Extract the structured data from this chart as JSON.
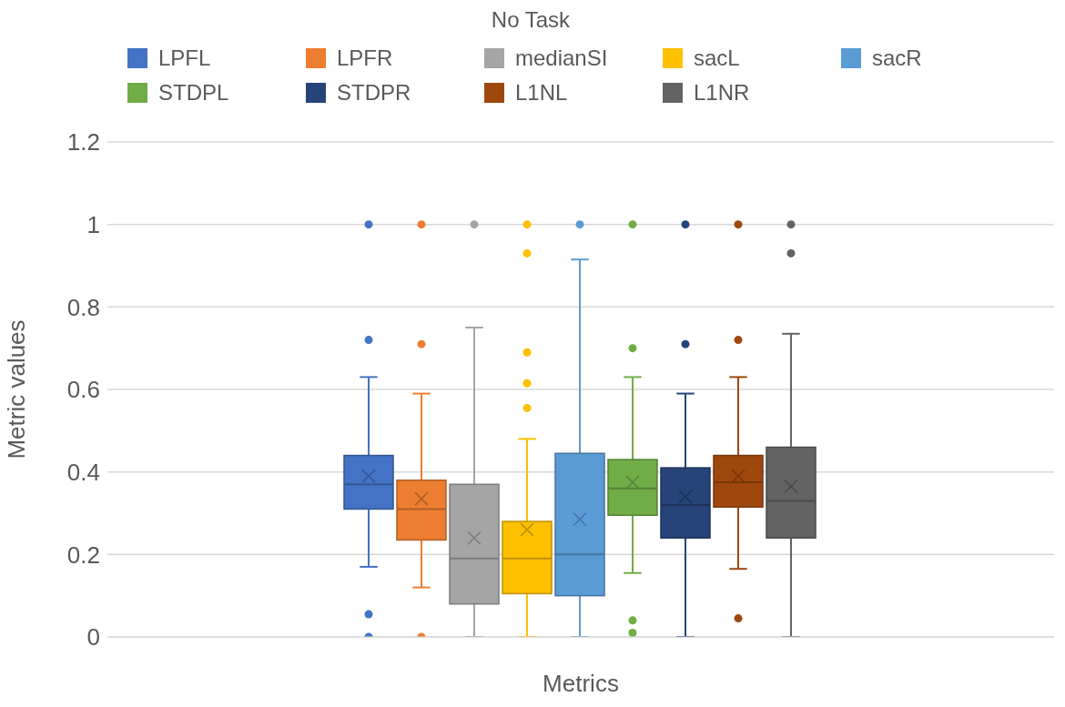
{
  "chart_data": {
    "type": "box",
    "title": "No Task",
    "xlabel": "Metrics",
    "ylabel": "Metric values",
    "categories": [
      null
    ],
    "ylim": [
      0,
      1.2
    ],
    "yticks": [
      0,
      0.2,
      0.4,
      0.6,
      0.8,
      1,
      1.2
    ],
    "grid": "y",
    "legend": "top",
    "series": [
      {
        "name": "LPFL",
        "color": "#4472c4",
        "boxes": [
          {
            "low": 0.17,
            "q1": 0.31,
            "median": 0.37,
            "q3": 0.44,
            "high": 0.63,
            "mean": 0.39,
            "outliers": [
              1,
              0.72,
              0.055,
              0
            ]
          }
        ]
      },
      {
        "name": "LPFR",
        "color": "#ed7d31",
        "boxes": [
          {
            "low": 0.12,
            "q1": 0.235,
            "median": 0.31,
            "q3": 0.38,
            "high": 0.59,
            "mean": 0.335,
            "outliers": [
              1,
              0.71,
              0
            ]
          }
        ]
      },
      {
        "name": "medianSI",
        "color": "#a5a5a5",
        "boxes": [
          {
            "low": 0,
            "q1": 0.08,
            "median": 0.19,
            "q3": 0.37,
            "high": 0.75,
            "mean": 0.24,
            "outliers": [
              1
            ]
          }
        ]
      },
      {
        "name": "sacL",
        "color": "#ffc000",
        "boxes": [
          {
            "low": 0,
            "q1": 0.105,
            "median": 0.19,
            "q3": 0.28,
            "high": 0.48,
            "mean": 0.26,
            "outliers": [
              1,
              0.93,
              0.69,
              0.615,
              0.555
            ]
          }
        ]
      },
      {
        "name": "sacR",
        "color": "#5b9bd5",
        "boxes": [
          {
            "low": 0,
            "q1": 0.1,
            "median": 0.2,
            "q3": 0.445,
            "high": 0.915,
            "mean": 0.285,
            "outliers": [
              1
            ]
          }
        ]
      },
      {
        "name": "STDPL",
        "color": "#70ad47",
        "boxes": [
          {
            "low": 0.155,
            "q1": 0.295,
            "median": 0.36,
            "q3": 0.43,
            "high": 0.63,
            "mean": 0.375,
            "outliers": [
              1,
              0.7,
              0.04,
              0.01
            ]
          }
        ]
      },
      {
        "name": "STDPR",
        "color": "#264478",
        "boxes": [
          {
            "low": 0,
            "q1": 0.24,
            "median": 0.32,
            "q3": 0.41,
            "high": 0.59,
            "mean": 0.34,
            "outliers": [
              1,
              0.71
            ]
          }
        ]
      },
      {
        "name": "L1NL",
        "color": "#9e480e",
        "boxes": [
          {
            "low": 0.165,
            "q1": 0.315,
            "median": 0.375,
            "q3": 0.44,
            "high": 0.63,
            "mean": 0.39,
            "outliers": [
              1,
              0.72,
              0.045
            ]
          }
        ]
      },
      {
        "name": "L1NR",
        "color": "#636363",
        "boxes": [
          {
            "low": 0,
            "q1": 0.24,
            "median": 0.33,
            "q3": 0.46,
            "high": 0.735,
            "mean": 0.365,
            "outliers": [
              1,
              0.93
            ]
          }
        ]
      }
    ]
  }
}
